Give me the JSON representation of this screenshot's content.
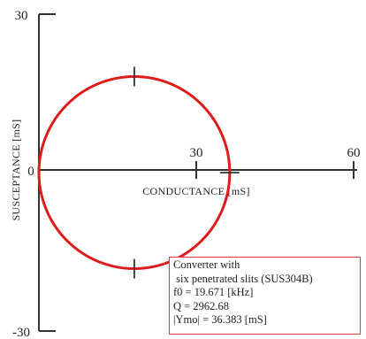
{
  "chart_data": {
    "type": "scatter",
    "xlabel": "CONDUCTANCE [mS]",
    "ylabel": "SUSCEPTANCE [mS]",
    "xlim": [
      0,
      60
    ],
    "ylim": [
      -30,
      30
    ],
    "x_ticks": [
      {
        "value": 0,
        "label": "0"
      },
      {
        "value": 30,
        "label": "30"
      },
      {
        "value": 60,
        "label": "60"
      }
    ],
    "y_ticks": [
      {
        "value": 30,
        "label": "30"
      },
      {
        "value": -30,
        "label": "-30"
      }
    ],
    "series": [
      {
        "shape": "circle",
        "center": [
          18.19,
          0
        ],
        "radius": 18.19,
        "color": "#dd1c1c",
        "marker_angles_deg": [
          90,
          0,
          -90
        ]
      }
    ],
    "annotation_lines": [
      "Converter with",
      " six penetrated slits (SUS304B)",
      "f0 = 19.671 [kHz]",
      "Q = 2962.68",
      "|Ymo| = 36.383 [mS]"
    ],
    "annotation_border_color": "#e23a3a",
    "grid": false
  }
}
